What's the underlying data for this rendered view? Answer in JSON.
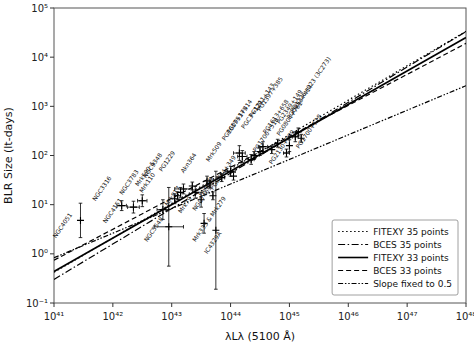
{
  "chart_data": {
    "type": "scatter",
    "xlabel": "λLλ (5100 Å)",
    "ylabel": "BLR Size (lt-days)",
    "log": true,
    "grid": false,
    "legend": "lower right",
    "xlim": [
      1e+41,
      1e+48
    ],
    "ylim": [
      0.1,
      100000
    ],
    "xticks": [
      {
        "value": 1e+41,
        "label": "10⁴¹"
      },
      {
        "value": 1e+42,
        "label": "10⁴²"
      },
      {
        "value": 1e+43,
        "label": "10⁴³"
      },
      {
        "value": 1e+44,
        "label": "10⁴⁴"
      },
      {
        "value": 1e+45,
        "label": "10⁴⁵"
      },
      {
        "value": 1e+46,
        "label": "10⁴⁶"
      },
      {
        "value": 1e+47,
        "label": "10⁴⁷"
      },
      {
        "value": 1e+48,
        "label": "10⁴⁸"
      }
    ],
    "yticks": [
      {
        "value": 0.1,
        "label": "10⁻¹"
      },
      {
        "value": 1,
        "label": "10⁰"
      },
      {
        "value": 10,
        "label": "10¹"
      },
      {
        "value": 100,
        "label": "10²"
      },
      {
        "value": 1000,
        "label": "10³"
      },
      {
        "value": 10000,
        "label": "10⁴"
      },
      {
        "value": 100000,
        "label": "10⁵"
      }
    ],
    "series": [
      {
        "type": "scatter",
        "marker": "plus",
        "color": "black",
        "x": [
          2.818383e+41,
          1.412538e+42,
          2.238721e+42,
          3.162278e+42,
          7.079458e+42,
          8.912509e+42,
          1.122018e+43,
          1.258925e+43,
          1.412538e+43,
          1.584893e+43,
          2.238721e+43,
          2.511886e+43,
          3.162278e+43,
          3.548134e+43,
          3.981072e+43,
          4.466836e+43,
          5.011872e+43,
          5.623413e+43,
          7.079458e+43,
          1e+44,
          1.122018e+44,
          1.412538e+44,
          1.584893e+44,
          2.238721e+44,
          2.511886e+44,
          3.162278e+44,
          3.548134e+44,
          5.011872e+44,
          6.309573e+44,
          8.912509e+44,
          1e+45,
          1.258925e+45,
          1.412538e+45,
          1.584893e+45
        ],
        "values": [
          4.786301,
          9.549926,
          8.912509,
          12.02264,
          7.943282,
          3.548134,
          13.18257,
          15.13561,
          17.78279,
          20.89296,
          23.98833,
          17.78279,
          12.58925,
          4.168694,
          30.19952,
          26.30268,
          15.13561,
          3.019952,
          35.48134,
          47.86301,
          38.01894,
          112.2018,
          95.49926,
          83.17638,
          100,
          120.2264,
          151.3561,
          131.8257,
          177.8279,
          112.2018,
          158.4893,
          239.8833,
          301.9952,
          223.8721
        ],
        "y_lower": [
          2.137962,
          7.585776,
          6.76083,
          9.120108,
          5.011872,
          0.5623413,
          10.47129,
          12.58925,
          14.12538,
          16.59587,
          19.95262,
          13.48963,
          8.912509,
          2.630268,
          23.98833,
          21.87762,
          12.58925,
          0.1905461,
          29.51209,
          38.01894,
          31.62278,
          79.43282,
          72.4436,
          66.06934,
          83.17638,
          100,
          120.2264,
          109.6478,
          147.9108,
          93.32543,
          120.2264,
          190.5461,
          251.1886,
          186.2087
        ],
        "y_upper": [
          10.71519,
          12.02264,
          11.74898,
          15.84893,
          12.58925,
          22.38721,
          16.59587,
          18.19701,
          22.38721,
          26.30268,
          28.84032,
          23.44229,
          17.78279,
          6.606934,
          38.01894,
          31.62278,
          18.19701,
          47.86301,
          42.65795,
          60.25596,
          45.70882,
          158.4893,
          125.8925,
          104.7129,
          120.2264,
          144.544,
          190.5461,
          158.4893,
          213.7962,
          134.8963,
          208.9296,
          301.9952,
          363.0781,
          269.1535
        ],
        "x_lower": [
          null,
          1.174898e+42,
          1.778279e+42,
          2.630268e+42,
          5.623413e+42,
          5.011872e+42,
          null,
          null,
          null,
          1.122018e+43,
          null,
          null,
          null,
          null,
          null,
          null,
          null,
          null,
          6.309573e+43,
          8.317638e+43,
          null,
          1.122018e+44,
          1.318257e+44,
          1.995262e+44,
          null,
          null,
          2.951209e+44,
          null,
          null,
          7.943282e+44,
          null,
          1.122018e+45,
          null,
          null
        ],
        "x_upper": [
          null,
          1.698244e+42,
          2.818383e+42,
          3.801894e+42,
          8.912509e+42,
          1.584893e+43,
          null,
          null,
          null,
          2.238721e+43,
          null,
          null,
          null,
          null,
          null,
          null,
          null,
          null,
          7.943282e+43,
          1.202264e+44,
          null,
          1.778279e+44,
          1.905461e+44,
          2.511886e+44,
          null,
          null,
          4.265795e+44,
          null,
          null,
          1e+45,
          null,
          1.412538e+45,
          null,
          null
        ]
      },
      {
        "type": "line",
        "name": "FITEXY 35 points",
        "line_style": "dotted",
        "color": "black",
        "x": [
          1e+41,
          1e+48
        ],
        "values": [
          0.4216965,
          33496.54
        ]
      },
      {
        "type": "line",
        "name": "BCES 35 points",
        "line_style": "dashdot",
        "color": "black",
        "x": [
          1e+41,
          1e+48
        ],
        "values": [
          0.3019952,
          33113.11
        ]
      },
      {
        "type": "line",
        "name": "FITEXY 33 points",
        "line_style": "solid",
        "color": "black",
        "x": [
          1e+41,
          1e+48
        ],
        "values": [
          0.4365158,
          25118.86
        ]
      },
      {
        "type": "line",
        "name": "BCES 33 points",
        "line_style": "dashed",
        "color": "black",
        "x": [
          1e+41,
          1e+48
        ],
        "values": [
          0.7413102,
          19054.61
        ]
      },
      {
        "type": "line",
        "name": "Slope fixed to 0.5",
        "line_style": "dashdotdotted",
        "color": "black",
        "x": [
          1e+41,
          1e+48
        ],
        "values": [
          0.8317638,
          2630.268
        ]
      }
    ],
    "annotations": [
      {
        "text": "NGC4051",
        "x": 1.122018e+41,
        "y": 1.995262
      },
      {
        "text": "NGC3316",
        "x": 5.248075e+41,
        "y": 11.22018
      },
      {
        "text": "NGC4151",
        "x": 7.943282e+41,
        "y": 3.981072
      },
      {
        "text": "NGC3783",
        "x": 1.513561e+42,
        "y": 15.13561
      },
      {
        "text": "Mrk590 &",
        "x": 2.818383e+42,
        "y": 22.38721
      },
      {
        "text": "Mrk110",
        "x": 3.311311e+42,
        "y": 16.59587
      },
      {
        "text": "NGC5548",
        "x": 3.981072e+42,
        "y": 1.659587
      },
      {
        "text": "NGC3348",
        "x": 3.801894e+42,
        "y": 33.11311
      },
      {
        "text": "PG1229",
        "x": 7.079458e+42,
        "y": 44.66836
      },
      {
        "text": "Mrk817",
        "x": 8.912509e+42,
        "y": 8.912509
      },
      {
        "text": "Mrk79",
        "x": 1.513561e+43,
        "y": 6.309573
      },
      {
        "text": "Mrk333 & Mrk279",
        "x": 2.630268e+43,
        "y": 1.659587
      },
      {
        "text": "Akn364",
        "x": 1.659587e+43,
        "y": 41.68694
      },
      {
        "text": "Fairall9",
        "x": 3.311311e+43,
        "y": 14.12538
      },
      {
        "text": "NGC7469",
        "x": 2.630268e+43,
        "y": 7.079458
      },
      {
        "text": "IC4329A",
        "x": 4.168694e+43,
        "y": 0.9549926
      },
      {
        "text": "PG0844+349",
        "x": 5.248075e+43,
        "y": 19.05461
      },
      {
        "text": "Mrk509",
        "x": 4.466836e+43,
        "y": 70.79458
      },
      {
        "text": "PG1617+175",
        "x": 8.317638e+43,
        "y": 190.5461
      },
      {
        "text": "PG1700+518",
        "x": 2.818383e+44,
        "y": 112.2018
      },
      {
        "text": "PG0953+414",
        "x": 1e+44,
        "y": 263.0268
      },
      {
        "text": "PGC3+129",
        "x": 1.778279e+44,
        "y": 331.1311
      },
      {
        "text": "PG1211+143",
        "x": 2.398833e+44,
        "y": 562.3413
      },
      {
        "text": "PG1397+385",
        "x": 3.311311e+44,
        "y": 758.5776
      },
      {
        "text": "PG1613+658",
        "x": 4.168694e+44,
        "y": 263.0268
      },
      {
        "text": "PG2130+099",
        "x": 5.248075e+44,
        "y": 63.09573
      },
      {
        "text": "PG0804+761",
        "x": 7.079458e+44,
        "y": 239.8833
      },
      {
        "text": "PG2349+149",
        "x": 7.079458e+44,
        "y": 416.8694
      },
      {
        "text": "PGC053+414",
        "x": 1.047129e+45,
        "y": 524.8075
      },
      {
        "text": "PG1226+023 (3C273)",
        "x": 1.202264e+45,
        "y": 707.9458
      },
      {
        "text": "PG1700+518",
        "x": 1.513561e+45,
        "y": 131.8257
      }
    ]
  }
}
